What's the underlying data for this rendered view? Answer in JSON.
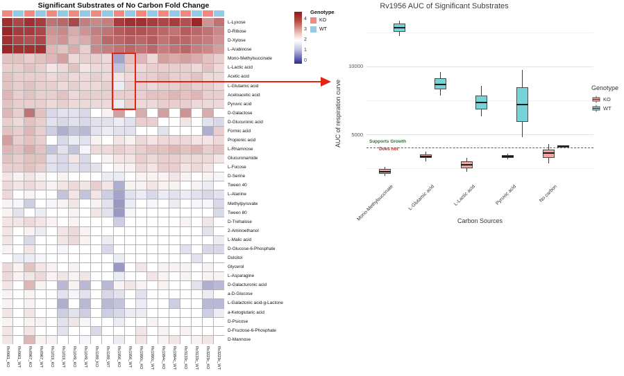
{
  "chart_data": [
    {
      "type": "heatmap",
      "title": "Significant Substrates of No Carbon Fold Change",
      "rows": [
        "L-Lyxose",
        "D-Ribose",
        "D-Xylose",
        "L-Arabinose",
        "Mono-Methylsuccinate",
        "L-Lactic acid",
        "Acetic acid",
        "L-Glutamic acid",
        "Acetoacetic acid",
        "Pyruvic acid",
        "D-Galactose",
        "D-Glucuronic acid",
        "Formic acid",
        "Propionic acid",
        "L-Rhamnose",
        "Glucuronamide",
        "L-Fucose",
        "D-Serine",
        "Tween 40",
        "L-Alanine",
        "Methylpyruvate",
        "Tween 80",
        "D-Trehalose",
        "2-Aminoethanol",
        "L-Malic acid",
        "D-Glucose-6-Phosphate",
        "Dulcitol",
        "Glycerol",
        "L-Asparagine",
        "D-Galacturonic acid",
        "a-D-Glucose",
        "L-Galactonic acid-g-Lactone",
        "a-Ketoglutaric acid",
        "D-Psicose",
        "D-Fructose-6-Phosphate",
        "D-Mannose"
      ],
      "columns": [
        "Rv0661_KO",
        "Rv0661_WT",
        "Rv0967_KO",
        "Rv0967_WT",
        "Rv1019_KO",
        "Rv1019_WT",
        "Rv1049_KO",
        "Rv1049_WT",
        "Rv1189_KO",
        "Rv1189_WT",
        "Rv1956_KO",
        "Rv1956_WT",
        "Rv1990c_KO",
        "Rv1990c_WT",
        "Rv1994c_KO",
        "Rv1994c_WT",
        "Rv3133c_KO",
        "Rv3133c_WT",
        "Rv3223c_KO",
        "Rv3223c_WT"
      ],
      "values": [
        [
          3.8,
          3.6,
          3.8,
          3.7,
          3.2,
          3.3,
          3.6,
          3.1,
          3.0,
          3.1,
          3.7,
          3.8,
          3.8,
          3.7,
          3.6,
          3.7,
          3.5,
          3.9,
          2.9,
          3.2
        ],
        [
          3.9,
          3.7,
          3.7,
          3.6,
          2.9,
          3.0,
          2.7,
          2.9,
          3.1,
          3.2,
          3.4,
          3.5,
          3.5,
          3.4,
          3.3,
          3.2,
          3.4,
          3.3,
          3.2,
          3.0
        ],
        [
          3.8,
          3.6,
          3.5,
          3.6,
          2.8,
          2.9,
          2.6,
          2.7,
          3.0,
          3.3,
          3.3,
          3.4,
          3.3,
          3.4,
          3.2,
          3.3,
          3.3,
          3.2,
          3.1,
          2.9
        ],
        [
          3.9,
          3.8,
          3.8,
          3.8,
          2.6,
          2.5,
          2.7,
          2.4,
          3.0,
          3.1,
          3.2,
          3.3,
          3.2,
          3.3,
          3.1,
          3.2,
          3.3,
          3.1,
          3.0,
          2.8
        ],
        [
          2.5,
          2.5,
          2.4,
          2.5,
          2.6,
          2.8,
          2.3,
          2.4,
          2.4,
          2.3,
          1.1,
          2.5,
          2.6,
          2.3,
          2.8,
          2.7,
          2.8,
          2.7,
          2.5,
          2.4
        ],
        [
          2.4,
          2.4,
          2.5,
          2.4,
          2.2,
          2.3,
          2.5,
          2.2,
          2.3,
          2.3,
          1.4,
          2.4,
          2.3,
          2.4,
          2.4,
          2.4,
          2.4,
          2.3,
          2.5,
          2.3
        ],
        [
          2.5,
          2.4,
          2.4,
          2.4,
          2.3,
          2.4,
          2.3,
          2.3,
          2.4,
          2.3,
          2.2,
          2.3,
          2.4,
          2.4,
          2.5,
          2.4,
          2.4,
          2.5,
          2.3,
          2.3
        ],
        [
          2.5,
          2.4,
          2.5,
          2.4,
          2.4,
          2.3,
          2.4,
          2.3,
          2.3,
          2.4,
          1.8,
          2.4,
          2.4,
          2.3,
          2.4,
          2.4,
          2.5,
          2.4,
          2.4,
          2.3
        ],
        [
          2.6,
          2.4,
          2.5,
          2.4,
          2.4,
          2.5,
          2.3,
          2.4,
          2.4,
          2.4,
          2.4,
          2.4,
          2.4,
          2.5,
          2.5,
          2.6,
          2.5,
          2.6,
          2.4,
          2.4
        ],
        [
          2.5,
          2.4,
          2.4,
          2.4,
          2.3,
          2.4,
          2.3,
          2.3,
          2.3,
          2.3,
          1.8,
          2.4,
          2.3,
          2.3,
          2.4,
          2.4,
          2.4,
          2.3,
          2.3,
          2.3
        ],
        [
          2.6,
          2.4,
          3.2,
          2.5,
          1.6,
          1.7,
          1.7,
          1.6,
          2.0,
          2.1,
          2.8,
          2.0,
          2.7,
          2.0,
          2.8,
          2.0,
          2.9,
          2.0,
          2.7,
          2.0
        ],
        [
          2.4,
          2.3,
          2.5,
          2.4,
          1.7,
          1.6,
          1.7,
          1.6,
          1.7,
          1.7,
          1.8,
          1.7,
          2.4,
          2.4,
          2.0,
          2.0,
          2.2,
          2.0,
          1.7,
          1.6
        ],
        [
          2.5,
          2.4,
          2.6,
          2.4,
          1.5,
          1.2,
          1.4,
          1.3,
          1.7,
          1.8,
          1.7,
          1.7,
          2.0,
          2.0,
          1.7,
          2.0,
          2.0,
          2.0,
          1.2,
          2.4
        ],
        [
          2.8,
          2.4,
          2.5,
          2.4,
          2.0,
          1.6,
          1.8,
          1.7,
          2.1,
          2.0,
          2.2,
          2.1,
          2.3,
          2.2,
          2.3,
          2.3,
          2.3,
          2.2,
          2.2,
          2.3
        ],
        [
          2.6,
          2.5,
          2.7,
          2.5,
          1.4,
          1.7,
          1.4,
          1.9,
          2.3,
          2.3,
          2.4,
          2.3,
          2.4,
          2.5,
          2.5,
          2.6,
          2.5,
          2.6,
          2.4,
          2.5
        ],
        [
          2.5,
          2.4,
          2.5,
          2.5,
          1.7,
          1.6,
          2.2,
          1.6,
          2.0,
          2.1,
          2.2,
          2.2,
          2.4,
          2.3,
          2.4,
          2.4,
          2.3,
          2.3,
          2.3,
          2.2
        ],
        [
          2.4,
          2.4,
          2.5,
          2.4,
          1.7,
          1.6,
          1.7,
          1.6,
          1.7,
          2.0,
          2.1,
          2.1,
          2.3,
          2.2,
          2.4,
          2.4,
          2.2,
          2.3,
          2.2,
          2.0
        ],
        [
          2.2,
          2.1,
          2.2,
          2.1,
          2.0,
          2.1,
          2.0,
          2.0,
          2.0,
          1.8,
          1.8,
          2.0,
          2.1,
          2.1,
          2.1,
          2.2,
          2.1,
          2.0,
          2.1,
          1.9
        ],
        [
          2.3,
          2.2,
          2.3,
          2.2,
          2.1,
          2.2,
          2.3,
          2.2,
          2.4,
          2.2,
          1.2,
          2.1,
          2.1,
          2.2,
          2.1,
          2.1,
          2.0,
          2.1,
          1.8,
          2.0
        ],
        [
          2.3,
          2.0,
          2.1,
          2.0,
          2.0,
          1.4,
          2.2,
          1.4,
          2.2,
          1.5,
          1.1,
          1.7,
          1.8,
          1.6,
          1.8,
          1.7,
          1.8,
          1.7,
          1.6,
          1.7
        ],
        [
          2.1,
          1.9,
          1.5,
          2.0,
          1.9,
          2.1,
          2.2,
          2.0,
          2.1,
          1.7,
          1.0,
          1.8,
          2.0,
          1.9,
          2.0,
          1.8,
          2.0,
          1.9,
          1.9,
          1.6
        ],
        [
          2.1,
          1.7,
          2.0,
          1.8,
          2.0,
          2.0,
          2.1,
          2.0,
          2.2,
          1.7,
          1.0,
          1.9,
          2.0,
          2.0,
          2.0,
          2.0,
          2.0,
          2.0,
          2.0,
          1.6
        ],
        [
          2.2,
          2.2,
          2.3,
          2.2,
          2.1,
          2.0,
          2.1,
          2.0,
          2.0,
          2.0,
          1.5,
          2.0,
          2.0,
          2.0,
          2.0,
          2.0,
          2.1,
          2.0,
          2.2,
          2.0
        ],
        [
          2.2,
          2.0,
          2.1,
          1.8,
          2.0,
          2.2,
          2.3,
          2.1,
          2.0,
          2.0,
          2.0,
          2.0,
          2.0,
          2.0,
          2.0,
          2.0,
          2.0,
          2.0,
          1.7,
          2.0
        ],
        [
          2.2,
          2.0,
          1.6,
          2.0,
          2.0,
          2.2,
          2.3,
          2.1,
          2.0,
          1.8,
          2.0,
          2.0,
          2.0,
          2.0,
          2.0,
          2.0,
          2.0,
          2.0,
          2.0,
          1.8
        ],
        [
          2.1,
          2.0,
          2.2,
          2.0,
          2.0,
          1.9,
          2.0,
          2.0,
          2.0,
          1.6,
          2.0,
          2.0,
          2.0,
          2.0,
          2.0,
          2.0,
          1.7,
          2.0,
          1.6,
          1.6
        ],
        [
          2.0,
          1.8,
          1.8,
          1.9,
          2.0,
          2.0,
          2.0,
          2.0,
          2.0,
          2.0,
          1.8,
          2.0,
          2.0,
          2.0,
          2.0,
          2.0,
          2.0,
          1.7,
          2.0,
          2.0
        ],
        [
          2.3,
          2.1,
          2.5,
          2.2,
          2.1,
          2.0,
          2.1,
          2.0,
          2.0,
          2.0,
          1.0,
          2.0,
          2.2,
          2.0,
          2.1,
          2.1,
          2.1,
          2.0,
          2.1,
          2.0
        ],
        [
          2.3,
          2.1,
          2.2,
          2.3,
          2.1,
          2.2,
          2.1,
          2.2,
          2.0,
          2.0,
          1.8,
          2.0,
          2.0,
          2.2,
          2.1,
          2.0,
          2.1,
          2.0,
          2.1,
          2.1
        ],
        [
          2.2,
          2.0,
          2.6,
          2.1,
          2.0,
          1.3,
          2.1,
          1.3,
          2.0,
          1.3,
          2.1,
          2.2,
          2.1,
          2.0,
          2.1,
          2.0,
          2.0,
          1.7,
          1.2,
          1.3
        ],
        [
          2.1,
          2.0,
          2.1,
          2.0,
          2.0,
          1.7,
          1.9,
          1.7,
          2.0,
          1.6,
          1.7,
          2.0,
          1.7,
          2.0,
          2.0,
          2.0,
          2.0,
          2.0,
          1.8,
          2.0
        ],
        [
          2.1,
          2.0,
          2.1,
          2.0,
          2.0,
          1.2,
          2.0,
          1.3,
          2.0,
          1.3,
          1.4,
          2.0,
          1.8,
          2.0,
          2.0,
          1.5,
          2.0,
          2.0,
          1.3,
          1.3
        ],
        [
          2.2,
          2.0,
          2.2,
          2.0,
          2.0,
          1.5,
          1.7,
          1.5,
          2.0,
          1.5,
          1.6,
          1.8,
          1.8,
          2.0,
          2.0,
          2.0,
          2.0,
          2.0,
          1.5,
          1.8
        ],
        [
          2.1,
          2.0,
          2.1,
          2.1,
          2.0,
          1.7,
          2.2,
          1.9,
          2.0,
          2.0,
          1.8,
          2.0,
          2.0,
          2.1,
          2.0,
          2.0,
          2.0,
          2.0,
          2.0,
          2.0
        ],
        [
          2.2,
          2.0,
          2.2,
          2.0,
          2.0,
          1.7,
          2.0,
          2.0,
          1.6,
          2.0,
          2.0,
          2.0,
          2.2,
          2.0,
          2.1,
          2.0,
          2.1,
          2.0,
          2.0,
          2.0
        ],
        [
          2.2,
          2.0,
          2.6,
          2.1,
          2.1,
          2.0,
          2.0,
          1.9,
          2.0,
          2.0,
          1.8,
          2.0,
          2.2,
          2.0,
          2.1,
          2.2,
          2.0,
          2.1,
          2.2,
          2.0
        ]
      ],
      "value_scale": {
        "min": 0,
        "max": 4,
        "low_color": "#2c2c82",
        "mid_color": "#ffffff",
        "high_color": "#961b1d"
      },
      "colorbar_ticks": [
        "4",
        "3",
        "2",
        "1",
        "0"
      ],
      "column_annotation": {
        "KO": "#F1897E",
        "WT": "#94CBE4"
      },
      "annotation_legend": {
        "title": "Genotype",
        "items": [
          {
            "label": "KO",
            "color": "#F1897E"
          },
          {
            "label": "WT",
            "color": "#94CBE4"
          }
        ]
      },
      "highlight_box": {
        "columns": [
          "Rv1956_KO",
          "Rv1956_WT"
        ],
        "row_start": "Mono-Methylsuccinate",
        "row_end": "Pyruvic acid",
        "color": "#e42313"
      }
    },
    {
      "type": "box",
      "title": "Rv1956 AUC of Significant Substrates",
      "ylabel": "AUC of respiration curve",
      "xlabel": "Carbon Sources",
      "categories": [
        "Mono-Methylsuccinate",
        "L-Glutamic acid",
        "L-Lactic acid",
        "Pyruvic acid",
        "No carbon"
      ],
      "series": [
        {
          "name": "KO",
          "color": "#F2A49E",
          "boxes": [
            {
              "low": 1950,
              "q1": 2100,
              "median": 2270,
              "q3": 2450,
              "high": 2600
            },
            {
              "low": 3010,
              "q1": 3270,
              "median": 3400,
              "q3": 3520,
              "high": 3720
            },
            {
              "low": 2250,
              "q1": 2500,
              "median": 2780,
              "q3": 3010,
              "high": 3260
            },
            {
              "low": 3170,
              "q1": 3270,
              "median": 3370,
              "q3": 3470,
              "high": 3570
            },
            {
              "low": 2860,
              "q1": 3270,
              "median": 3620,
              "q3": 3880,
              "high": 4290
            }
          ]
        },
        {
          "name": "WT",
          "color": "#76D4D9",
          "boxes": [
            {
              "low": 12250,
              "q1": 12550,
              "median": 12850,
              "q3": 13150,
              "high": 13350
            },
            {
              "low": 7860,
              "q1": 8320,
              "median": 8680,
              "q3": 9130,
              "high": 9590
            },
            {
              "low": 6330,
              "q1": 6840,
              "median": 7350,
              "q3": 7860,
              "high": 8570
            },
            {
              "low": 4800,
              "q1": 5920,
              "median": 7200,
              "q3": 8470,
              "high": 9750
            },
            {
              "low": 4050,
              "q1": 4080,
              "median": 4120,
              "q3": 4160,
              "high": 4190
            }
          ]
        }
      ],
      "ylim": [
        1500,
        13600
      ],
      "yticks": [
        5000,
        10000
      ],
      "yminor": [
        2500,
        7500,
        12500
      ],
      "legend": {
        "title": "Genotype",
        "position": "right"
      },
      "hline": {
        "value": 4050,
        "style": "dashed",
        "color": "#e3242b",
        "label_above": "Supports Growth",
        "label_below": "Does not"
      }
    }
  ]
}
